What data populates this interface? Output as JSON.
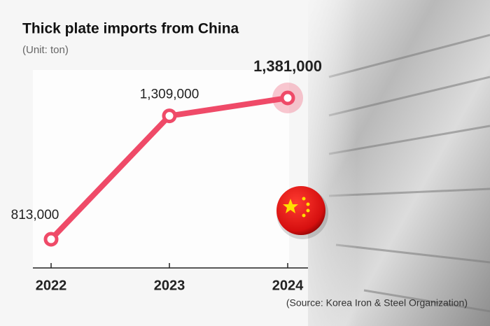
{
  "chart_data": {
    "type": "line",
    "title": "Thick plate imports from China",
    "subtitle": "(Unit: ton)",
    "categories": [
      "2022",
      "2023",
      "2024"
    ],
    "values": [
      813000,
      1309000,
      1381000
    ],
    "value_labels": [
      "813,000",
      "1,309,000",
      "1,381,000"
    ],
    "color": "#ef4a68",
    "source": "(Source: Korea Iron & Steel Organization)"
  }
}
